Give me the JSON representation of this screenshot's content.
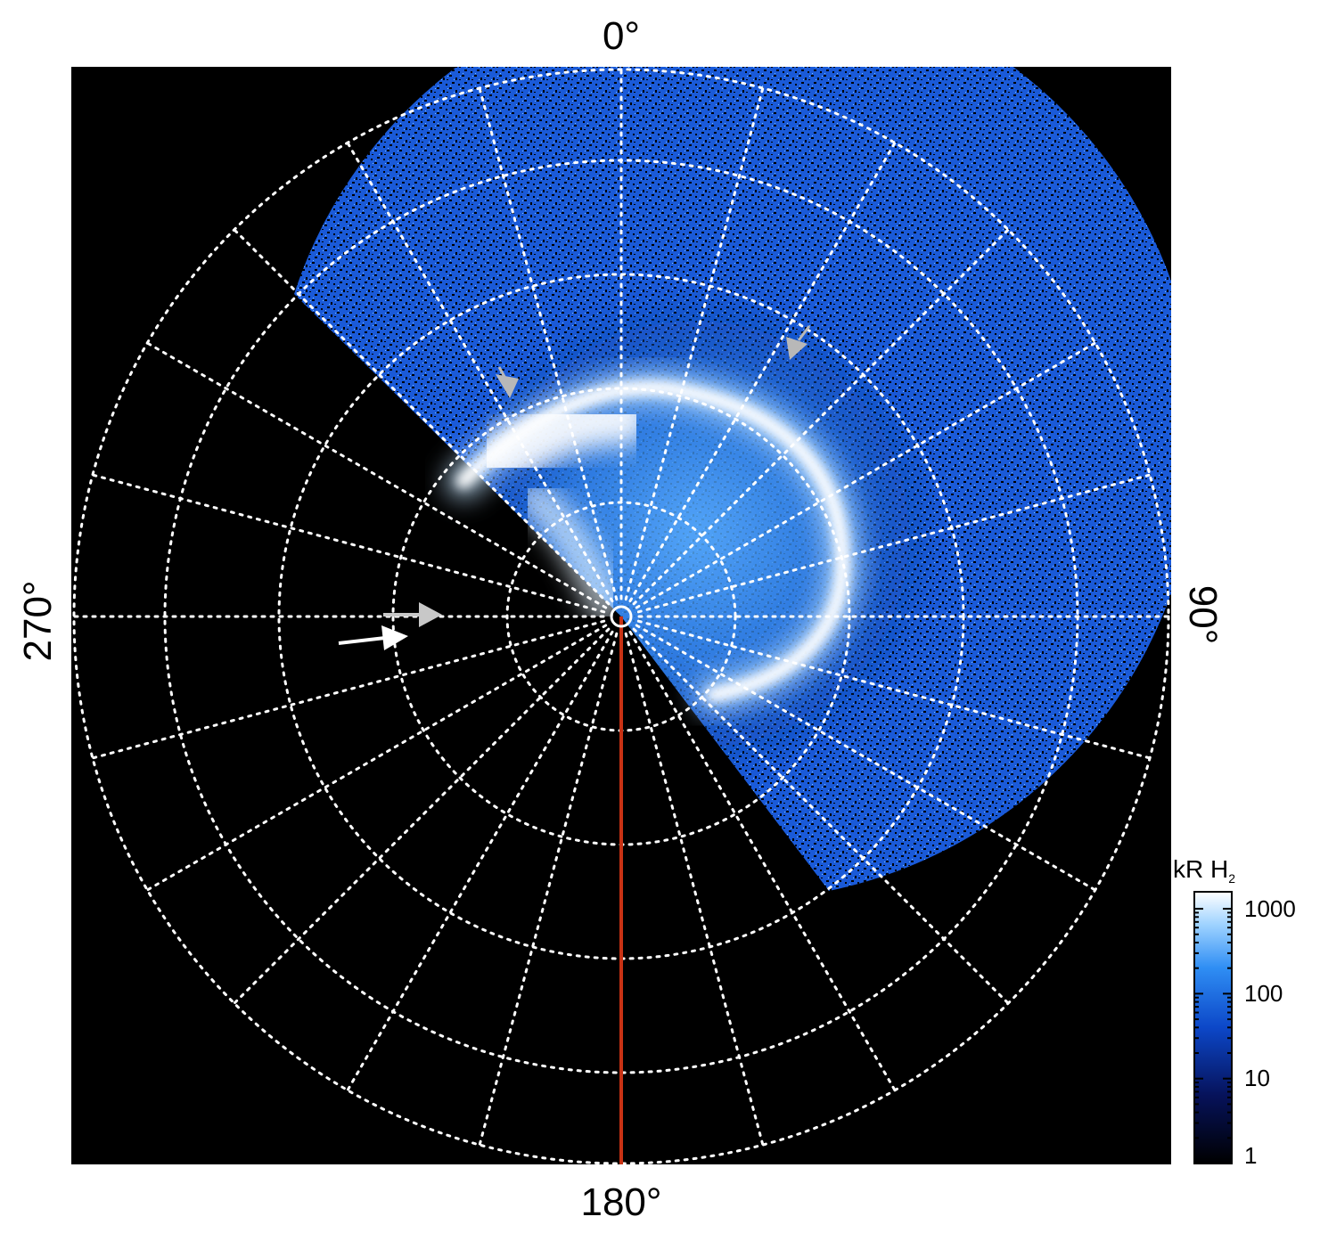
{
  "labels": {
    "top": "0°",
    "right": "90°",
    "bottom": "180°",
    "left": "270°"
  },
  "colorbar": {
    "title_main": "kR H",
    "title_sub": "2",
    "ticks": [
      "1000",
      "100",
      "10",
      "1"
    ]
  },
  "colors": {
    "background": "#000000",
    "grid": "#ffffff",
    "meridian_line": "#c83214",
    "auroral_high": "#ffffff",
    "auroral_mid": "#4aa8ff",
    "auroral_low": "#0a2a8a",
    "arrow_gray": "#b8b8b8",
    "arrow_white": "#ffffff"
  }
}
